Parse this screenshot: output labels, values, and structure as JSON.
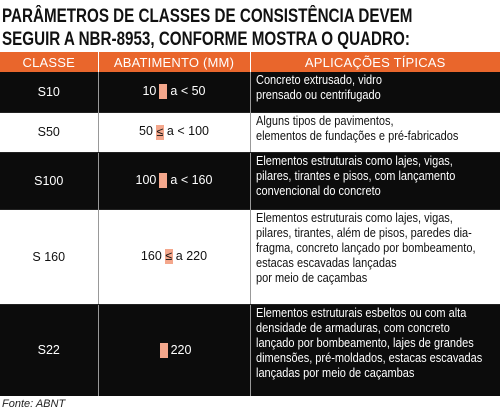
{
  "header": {
    "title_lines": [
      "PARÂMETROS DE CLASSES DE CONSISTÊNCIA DEVEM",
      "SEGUIR A NBR-8953, CONFORME MOSTRA O QUADRO:"
    ]
  },
  "table": {
    "columns": [
      "CLASSE",
      "ABATIMENTO (MM)",
      "APLICAÇÕES TÍPICAS"
    ],
    "rows": [
      {
        "classe": "S10",
        "abatimento": [
          "10",
          "a < 50"
        ],
        "aplicacoes": [
          "Concreto extrusado, vidro",
          "prensado ou centrifugado"
        ]
      },
      {
        "classe": "S50",
        "abatimento": [
          "50",
          "≤",
          "a < 100"
        ],
        "aplicacoes": [
          "Alguns tipos de pavimentos,",
          "elementos de fundações e pré-fabricados"
        ]
      },
      {
        "classe": "S100",
        "abatimento": [
          "100",
          "a < 160"
        ],
        "aplicacoes": [
          "Elementos estruturais como lajes, vigas,",
          "pilares, tirantes e pisos, com lançamento",
          "convencional do concreto"
        ]
      },
      {
        "classe": "S 160",
        "abatimento": [
          "160",
          "≤",
          "a 220"
        ],
        "aplicacoes": [
          "Elementos estruturais como lajes, vigas,",
          "pilares, tirantes, além de pisos, paredes dia-",
          "fragma, concreto lançado por bombeamento,",
          "estacas escavadas lançadas",
          "por meio de caçambas"
        ]
      },
      {
        "classe": "S22",
        "abatimento": [
          "220"
        ],
        "aplicacoes": [
          "Elementos estruturais esbeltos ou com alta",
          "densidade de armaduras, com concreto",
          "lançado por bombeamento, lajes de grandes",
          "dimensões, pré-moldados, estacas escavadas",
          "lançadas por meio de caçambas"
        ]
      }
    ]
  },
  "footer": {
    "source": "Fonte: ABNT"
  }
}
